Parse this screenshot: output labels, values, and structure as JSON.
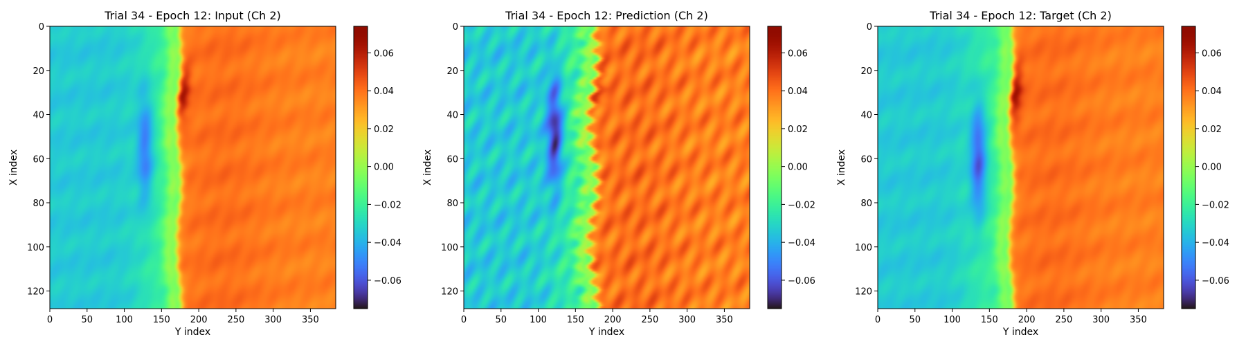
{
  "chart_data": [
    {
      "type": "heatmap",
      "title": "Trial 34 - Epoch 12: Input (Ch 2)",
      "xlabel": "Y index",
      "ylabel": "X index",
      "xlim": [
        0,
        384
      ],
      "ylim": [
        128,
        0
      ],
      "xticks": [
        "0",
        "50",
        "100",
        "150",
        "200",
        "250",
        "300",
        "350"
      ],
      "yticks": [
        "0",
        "20",
        "40",
        "60",
        "80",
        "100",
        "120"
      ],
      "colormap": "turbo",
      "colorbar": {
        "range": [
          -0.075,
          0.074
        ],
        "ticks": [
          "-0.06",
          "-0.04",
          "-0.02",
          "0.00",
          "0.02",
          "0.04",
          "0.06"
        ]
      },
      "field": {
        "front_y": 172,
        "front_wave": 3,
        "front_jitter": 1,
        "low_center_y": 128,
        "low_center_x": 55,
        "low_value": -0.056,
        "high_value": 0.067,
        "high_center_x": 30,
        "noise": 0.002
      }
    },
    {
      "type": "heatmap",
      "title": "Trial 34 - Epoch 12: Prediction (Ch 2)",
      "xlabel": "Y index",
      "ylabel": "X index",
      "xlim": [
        0,
        384
      ],
      "ylim": [
        128,
        0
      ],
      "xticks": [
        "0",
        "50",
        "100",
        "150",
        "200",
        "250",
        "300",
        "350"
      ],
      "yticks": [
        "0",
        "20",
        "40",
        "60",
        "80",
        "100",
        "120"
      ],
      "colormap": "turbo",
      "colorbar": {
        "range": [
          -0.075,
          0.074
        ],
        "ticks": [
          "-0.06",
          "-0.04",
          "-0.02",
          "0.00",
          "0.02",
          "0.04",
          "0.06"
        ]
      },
      "field": {
        "front_y": 172,
        "front_wave": 5,
        "front_jitter": 5,
        "low_center_y": 122,
        "low_center_x": 48,
        "low_value": -0.07,
        "high_value": 0.05,
        "high_center_x": 28,
        "noise": 0.008
      }
    },
    {
      "type": "heatmap",
      "title": "Trial 34 - Epoch 12: Target (Ch 2)",
      "xlabel": "Y index",
      "ylabel": "X index",
      "xlim": [
        0,
        384
      ],
      "ylim": [
        128,
        0
      ],
      "xticks": [
        "0",
        "50",
        "100",
        "150",
        "200",
        "250",
        "300",
        "350"
      ],
      "yticks": [
        "0",
        "20",
        "40",
        "60",
        "80",
        "100",
        "120"
      ],
      "colormap": "turbo",
      "colorbar": {
        "range": [
          -0.075,
          0.074
        ],
        "ticks": [
          "-0.06",
          "-0.04",
          "-0.02",
          "0.00",
          "0.02",
          "0.04",
          "0.06"
        ]
      },
      "field": {
        "front_y": 178,
        "front_wave": 3,
        "front_jitter": 1,
        "low_center_y": 135,
        "low_center_x": 60,
        "low_value": -0.065,
        "high_value": 0.07,
        "high_center_x": 30,
        "noise": 0.002
      }
    }
  ]
}
